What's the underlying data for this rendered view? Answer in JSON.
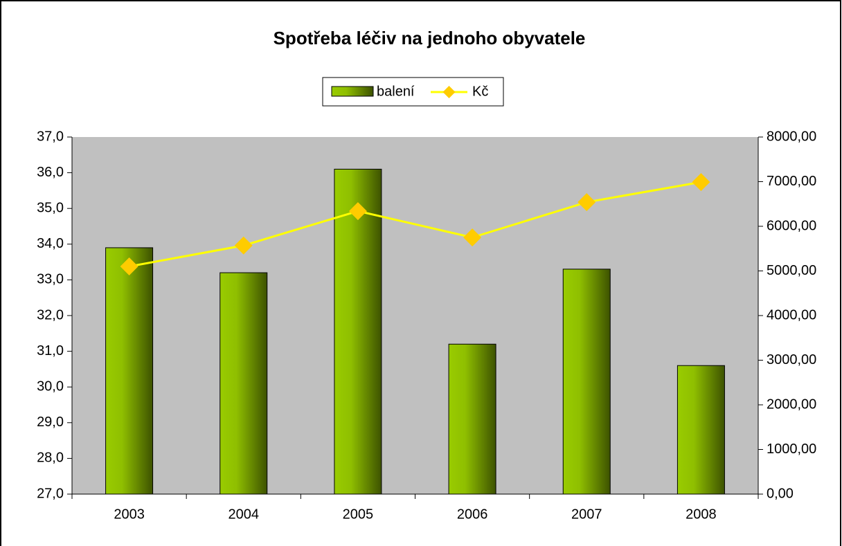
{
  "chart_data": {
    "type": "bar_line",
    "title": "Spotřeba léčiv na jednoho obyvatele",
    "categories": [
      "2003",
      "2004",
      "2005",
      "2006",
      "2007",
      "2008"
    ],
    "series": [
      {
        "name": "balení",
        "type": "bar",
        "color": "#99cc00",
        "values": [
          33.9,
          33.2,
          36.1,
          31.2,
          33.3,
          30.6
        ]
      },
      {
        "name": "Kč",
        "type": "line",
        "axis": "y2",
        "color": "#ffff00",
        "marker_color": "#ffcc00",
        "values": [
          5100,
          5570,
          6340,
          5750,
          6540,
          6990
        ]
      }
    ],
    "ylim": [
      27,
      37
    ],
    "yticks": [
      {
        "value": 27,
        "label": "27,0"
      },
      {
        "value": 28,
        "label": "28,0"
      },
      {
        "value": 29,
        "label": "29,0"
      },
      {
        "value": 30,
        "label": "30,0"
      },
      {
        "value": 31,
        "label": "31,0"
      },
      {
        "value": 32,
        "label": "32,0"
      },
      {
        "value": 33,
        "label": "33,0"
      },
      {
        "value": 34,
        "label": "34,0"
      },
      {
        "value": 35,
        "label": "35,0"
      },
      {
        "value": 36,
        "label": "36,0"
      },
      {
        "value": 37,
        "label": "37,0"
      }
    ],
    "y2lim": [
      0,
      8000
    ],
    "y2ticks": [
      {
        "value": 0,
        "label": "0,00"
      },
      {
        "value": 1000,
        "label": "1000,00"
      },
      {
        "value": 2000,
        "label": "2000,00"
      },
      {
        "value": 3000,
        "label": "3000,00"
      },
      {
        "value": 4000,
        "label": "4000,00"
      },
      {
        "value": 5000,
        "label": "5000,00"
      },
      {
        "value": 6000,
        "label": "6000,00"
      },
      {
        "value": 7000,
        "label": "7000,00"
      },
      {
        "value": 8000,
        "label": "8000,00"
      }
    ],
    "plot_background": "#c0c0c0",
    "legend": "top"
  }
}
